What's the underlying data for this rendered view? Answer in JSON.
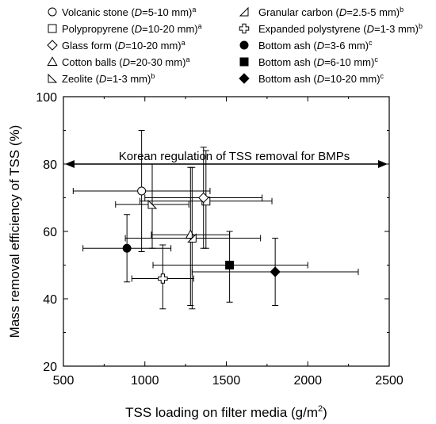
{
  "chart_data": {
    "type": "scatter",
    "xlabel": "TSS loading on filter media (g/m²)",
    "xlabel_main": "TSS loading on filter media (g/m",
    "xlabel_sup": "2",
    "xlabel_end": ")",
    "ylabel": "Mass removal efficiency of TSS (%)",
    "xlim": [
      500,
      2500
    ],
    "ylim": [
      20,
      100
    ],
    "x_ticks": [
      500,
      1000,
      1500,
      2000,
      2500
    ],
    "y_ticks": [
      20,
      40,
      60,
      80,
      100
    ],
    "grid": false,
    "legend_placement": "top",
    "annotation": {
      "text": "Korean regulation of TSS removal for BMPs",
      "y": 80,
      "x_range": [
        500,
        2500
      ],
      "style": "double-headed arrow"
    },
    "series": [
      {
        "name_prefix": "Volcanic stone (",
        "d_value": "=5-10 mm)",
        "superscript": "a",
        "marker": "open-circle",
        "points": [
          {
            "x": 980,
            "y": 72,
            "xerr": [
              560,
              1400
            ],
            "yerr": [
              54,
              90
            ]
          }
        ]
      },
      {
        "name_prefix": "Polypropyrene (",
        "d_value": "=10-20 mm)",
        "superscript": "a",
        "marker": "open-square",
        "points": [
          {
            "x": 1375,
            "y": 69,
            "xerr": [
              970,
              1780
            ],
            "yerr": [
              55,
              84
            ]
          }
        ]
      },
      {
        "name_prefix": "Glass form (",
        "d_value": "=10-20 mm)",
        "superscript": "a",
        "marker": "open-diamond",
        "points": [
          {
            "x": 1360,
            "y": 70,
            "xerr": [
              1000,
              1720
            ],
            "yerr": [
              55,
              85
            ]
          }
        ]
      },
      {
        "name_prefix": "Cotton balls (",
        "d_value": "=20-30 mm)",
        "superscript": "a",
        "marker": "open-triangle",
        "points": [
          {
            "x": 1280,
            "y": 59,
            "xerr": [
              1040,
              1520
            ],
            "yerr": [
              38,
              79
            ]
          }
        ]
      },
      {
        "name_prefix": "Zeolite (",
        "d_value": "=1-3 mm)",
        "superscript": "b",
        "marker": "open-half-triangle",
        "points": [
          {
            "x": 1045,
            "y": 68,
            "xerr": [
              820,
              1270
            ],
            "yerr": [
              55,
              80
            ]
          }
        ]
      },
      {
        "name_prefix": "Granular carbon (",
        "d_value": "=2.5-5 mm)",
        "superscript": "b",
        "marker": "open-half-triangle-left",
        "points": [
          {
            "x": 1290,
            "y": 58,
            "xerr": [
              880,
              1710
            ],
            "yerr": [
              37,
              79
            ]
          }
        ]
      },
      {
        "name_prefix": "Expanded polystyrene (",
        "d_value": "=1-3 mm)",
        "superscript": "b",
        "marker": "open-cross",
        "points": [
          {
            "x": 1110,
            "y": 46,
            "xerr": [
              920,
              1300
            ],
            "yerr": [
              37,
              56
            ]
          }
        ]
      },
      {
        "name_prefix": "Bottom ash (",
        "d_value": "=3-6 mm)",
        "superscript": "c",
        "marker": "filled-circle",
        "points": [
          {
            "x": 890,
            "y": 55,
            "xerr": [
              620,
              1160
            ],
            "yerr": [
              45,
              65
            ]
          }
        ]
      },
      {
        "name_prefix": "Bottom ash (",
        "d_value": "=6-10 mm)",
        "superscript": "c",
        "marker": "filled-square",
        "points": [
          {
            "x": 1520,
            "y": 50,
            "xerr": [
              1050,
              2000
            ],
            "yerr": [
              39,
              60
            ]
          }
        ]
      },
      {
        "name_prefix": "Bottom ash (",
        "d_value": "=10-20 mm)",
        "superscript": "c",
        "marker": "filled-diamond",
        "points": [
          {
            "x": 1800,
            "y": 48,
            "xerr": [
              1290,
              2310
            ],
            "yerr": [
              38,
              58
            ]
          }
        ]
      }
    ]
  }
}
